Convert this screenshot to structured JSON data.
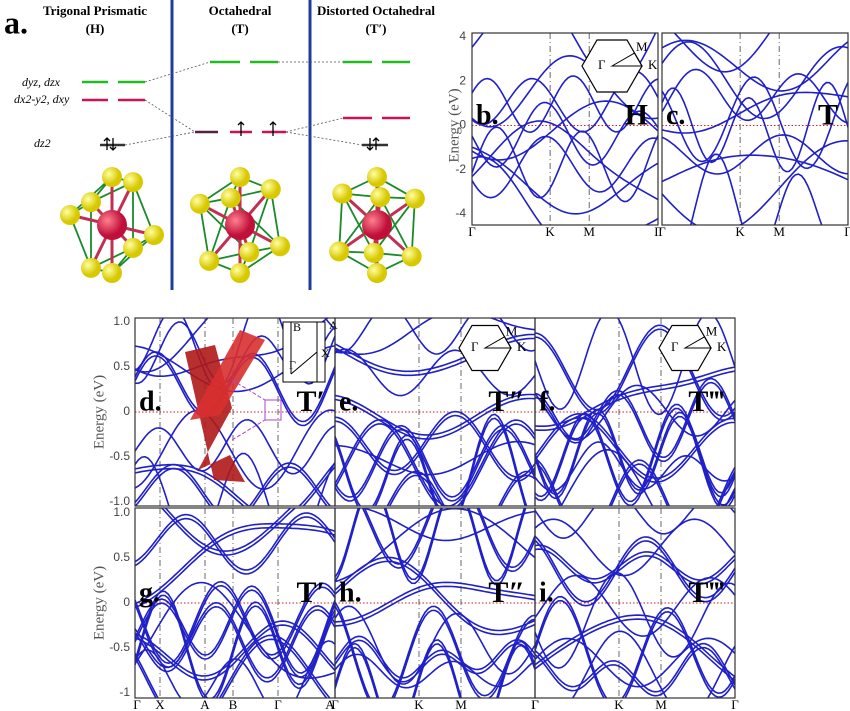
{
  "panel_a": {
    "label": "a.",
    "columns": [
      {
        "title": "Trigonal Prismatic",
        "subtitle": "(H)"
      },
      {
        "title": "Octahedral",
        "subtitle": "(T)"
      },
      {
        "title": "Distorted Octahedral",
        "subtitle": "(T′)"
      }
    ],
    "orbitals": [
      "dyz, dzx",
      "dx2-y2, dxy",
      "dz2"
    ]
  },
  "insets": {
    "hexagon": [
      "M",
      "Γ",
      "K"
    ],
    "rectangle": [
      "B",
      "A",
      "X",
      "Γ"
    ]
  },
  "band_structures": {
    "top": {
      "y_label": "Energy (eV)",
      "yticks": [
        "4",
        "2",
        "0",
        "-2",
        "-4"
      ],
      "panels": [
        {
          "label": "b.",
          "phase": "H",
          "kpoints": [
            "Γ",
            "K",
            "M",
            "Γ"
          ]
        },
        {
          "label": "c.",
          "phase": "T",
          "kpoints": [
            "Γ",
            "K",
            "M",
            "Γ"
          ]
        }
      ]
    },
    "middle": {
      "y_label": "Energy (eV)",
      "yticks": [
        "1.0",
        "0.5",
        "0",
        "-0.5",
        "-1.0"
      ],
      "panels": [
        {
          "label": "d.",
          "phase": "T′"
        },
        {
          "label": "e.",
          "phase": "T″"
        },
        {
          "label": "f.",
          "phase": "T‴"
        }
      ]
    },
    "bottom": {
      "y_label": "Energy (eV)",
      "yticks": [
        "1.0",
        "0.5",
        "0",
        "-0.5",
        "-1"
      ],
      "panels": [
        {
          "label": "g.",
          "phase": "T′",
          "kpoints": [
            "Γ",
            "X",
            "A",
            "B",
            "Γ",
            "A"
          ]
        },
        {
          "label": "h.",
          "phase": "T″",
          "kpoints": [
            "Γ",
            "K",
            "M",
            "Γ"
          ]
        },
        {
          "label": "i.",
          "phase": "T‴",
          "kpoints": [
            "Γ",
            "K",
            "M",
            "Γ"
          ]
        }
      ]
    }
  }
}
